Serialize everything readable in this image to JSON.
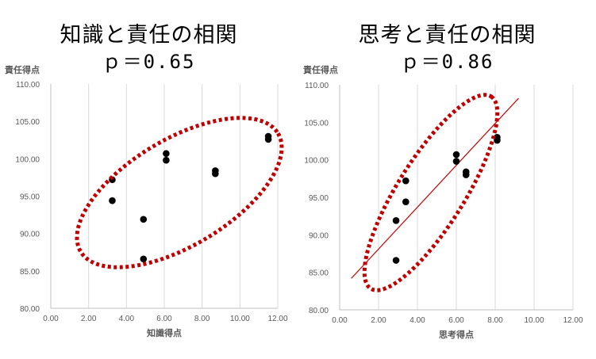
{
  "chart_data": [
    {
      "type": "scatter",
      "title": "知識と責任の相関",
      "subtitle": "ｐ＝0.65",
      "xlabel": "知識得点",
      "ylabel": "責任得点",
      "xlim": [
        0,
        12
      ],
      "ylim": [
        80,
        110
      ],
      "xticks": [
        "0.00",
        "2.00",
        "4.00",
        "6.00",
        "8.00",
        "10.00",
        "12.00"
      ],
      "yticks": [
        "80.00",
        "85.00",
        "90.00",
        "95.00",
        "100.00",
        "105.00",
        "110.00"
      ],
      "grid": "vertical",
      "points": [
        {
          "x": 3.25,
          "y": 97.2
        },
        {
          "x": 3.25,
          "y": 94.4
        },
        {
          "x": 4.9,
          "y": 91.9
        },
        {
          "x": 4.9,
          "y": 86.6
        },
        {
          "x": 6.1,
          "y": 100.7
        },
        {
          "x": 6.1,
          "y": 99.8
        },
        {
          "x": 8.7,
          "y": 98.4
        },
        {
          "x": 8.7,
          "y": 98.0
        },
        {
          "x": 11.5,
          "y": 103.0
        },
        {
          "x": 11.5,
          "y": 102.6
        }
      ],
      "ellipse_color": "#c00000",
      "point_color": "#000000"
    },
    {
      "type": "scatter",
      "title": "思考と責任の相関",
      "subtitle": "ｐ＝0.86",
      "xlabel": "思考得点",
      "ylabel": "責任得点",
      "xlim": [
        0,
        12
      ],
      "ylim": [
        80,
        110
      ],
      "xticks": [
        "0.00",
        "2.00",
        "4.00",
        "6.00",
        "8.00",
        "10.00",
        "12.00"
      ],
      "yticks": [
        "80.00",
        "85.00",
        "90.00",
        "95.00",
        "100.00",
        "105.00",
        "110.00"
      ],
      "grid": "vertical",
      "points": [
        {
          "x": 2.9,
          "y": 91.9
        },
        {
          "x": 2.9,
          "y": 86.6
        },
        {
          "x": 3.4,
          "y": 97.2
        },
        {
          "x": 3.4,
          "y": 94.4
        },
        {
          "x": 6.0,
          "y": 100.7
        },
        {
          "x": 6.0,
          "y": 99.8
        },
        {
          "x": 6.5,
          "y": 98.4
        },
        {
          "x": 6.5,
          "y": 98.0
        },
        {
          "x": 8.1,
          "y": 103.0
        },
        {
          "x": 8.1,
          "y": 102.6
        }
      ],
      "trendline": {
        "x": [
          0.6,
          9.2
        ],
        "y": [
          84.2,
          108.2
        ]
      },
      "trendline_color": "#c00000",
      "ellipse_color": "#c00000",
      "point_color": "#000000"
    }
  ]
}
